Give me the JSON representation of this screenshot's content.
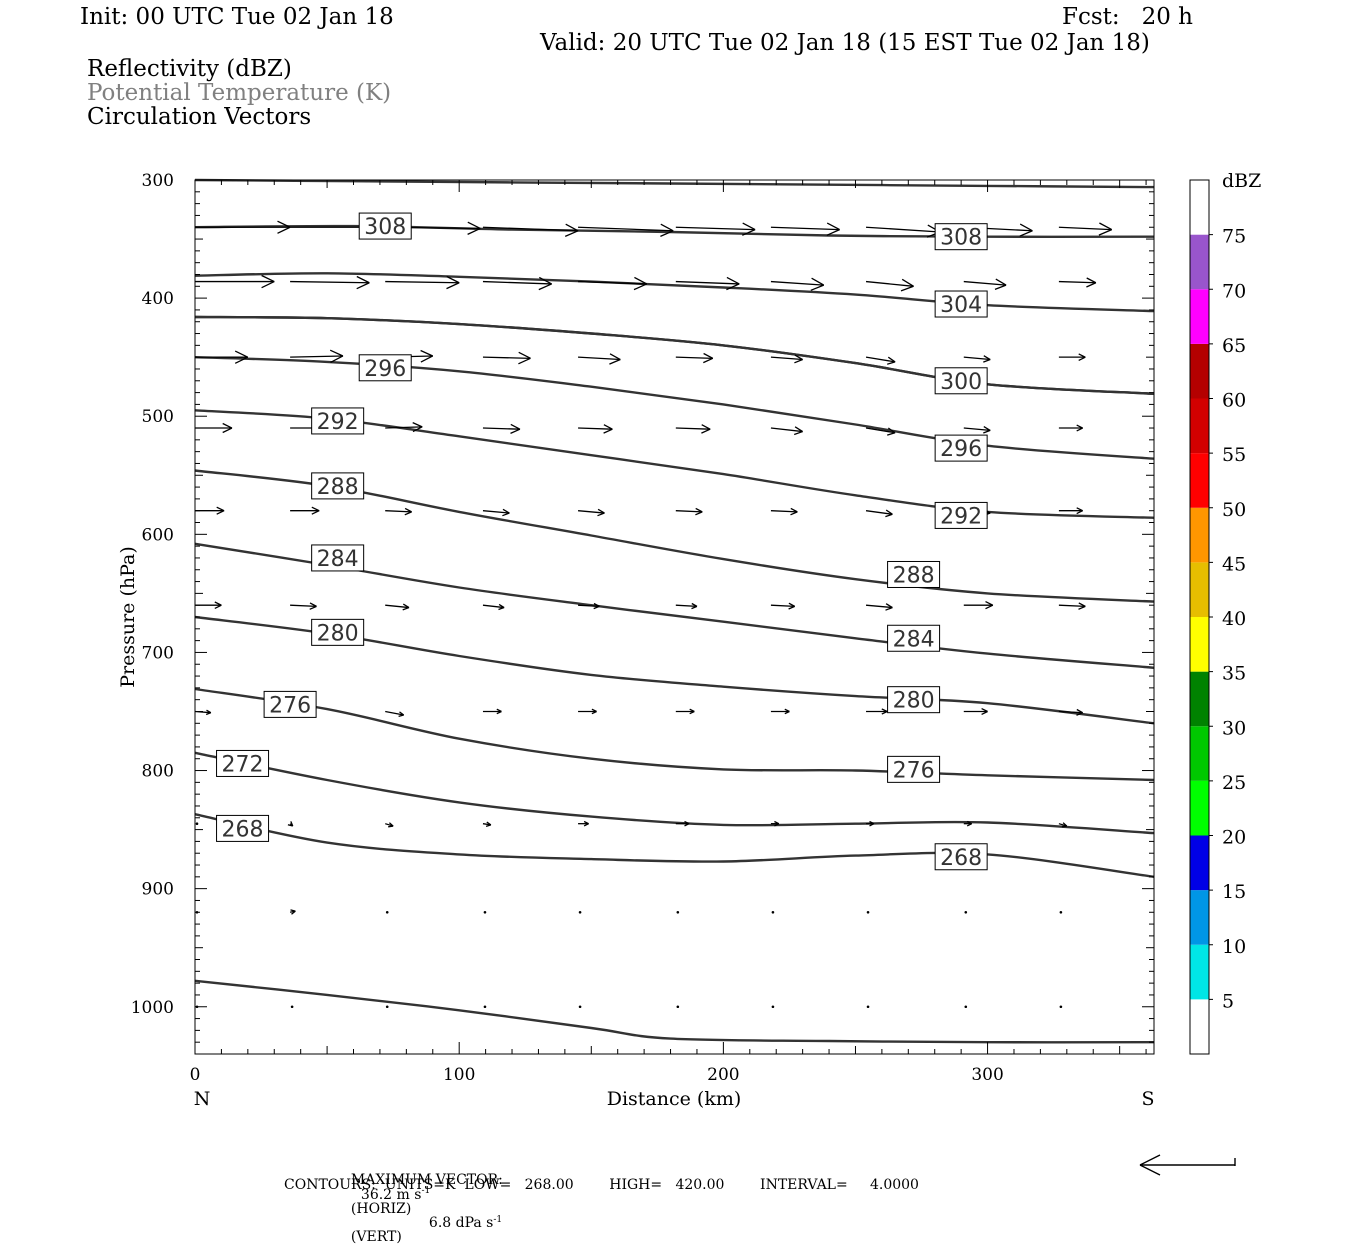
{
  "header": {
    "init": "Init: 00 UTC Tue 02 Jan 18",
    "fcst": "Fcst:   20 h",
    "valid": "Valid: 20 UTC Tue 02 Jan 18 (15 EST Tue 02 Jan 18)",
    "field1": "Reflectivity (dBZ)",
    "field2": "Potential Temperature (K)",
    "field3": "Circulation Vectors"
  },
  "footer": {
    "max_vector_label": "MAXIMUM VECTOR:",
    "max_vector_horiz": "36.2 m s",
    "horiz_exp": "-1",
    "horiz_tag": "(HORIZ)",
    "max_vector_vert": "6.8 dPa s",
    "vert_exp": "-1",
    "vert_tag": "(VERT)",
    "contours": "CONTOURS:  UNITS=K  LOW=   268.00        HIGH=   420.00        INTERVAL=     4.0000"
  },
  "colors": {
    "contour": "#333333",
    "frame": "#000000",
    "header_gray": "#808080"
  },
  "chart_data": {
    "type": "line",
    "xlabel": "Distance (km)",
    "ylabel": "Pressure (hPa)",
    "xlim": [
      0,
      363
    ],
    "ylim": [
      300,
      1040
    ],
    "y_inverted": true,
    "x_ticks": [
      0,
      100,
      200,
      300
    ],
    "y_ticks": [
      300,
      400,
      500,
      600,
      700,
      800,
      900,
      1000
    ],
    "x_end_labels": {
      "left": "N",
      "right": "S"
    },
    "contour_units": "K",
    "contours": [
      {
        "x": [
          0,
          60,
          120,
          180,
          240,
          300,
          363
        ],
        "p": [
          300,
          301,
          302,
          303,
          304,
          305,
          306
        ]
      },
      {
        "value": 308,
        "x": [
          0,
          60,
          120,
          180,
          240,
          300,
          363
        ],
        "p": [
          340,
          339,
          342,
          344,
          347,
          348,
          348
        ]
      },
      {
        "value": 304,
        "x": [
          0,
          50,
          100,
          150,
          200,
          250,
          300,
          363
        ],
        "p": [
          381,
          379,
          382,
          386,
          391,
          397,
          406,
          411
        ]
      },
      {
        "x": [
          0,
          50,
          100,
          150,
          200,
          250,
          300,
          363
        ],
        "p": [
          416,
          417,
          422,
          430,
          440,
          455,
          473,
          481
        ]
      },
      {
        "value": 300,
        "x": [
          0,
          50,
          100,
          150,
          200,
          250,
          300,
          363
        ],
        "p": [
          416,
          417,
          422,
          430,
          440,
          455,
          473,
          481
        ]
      },
      {
        "value": 296,
        "x": [
          0,
          50,
          100,
          150,
          200,
          250,
          300,
          363
        ],
        "p": [
          450,
          454,
          462,
          475,
          490,
          507,
          525,
          536
        ]
      },
      {
        "value": 292,
        "x": [
          0,
          50,
          100,
          150,
          200,
          250,
          300,
          363
        ],
        "p": [
          495,
          502,
          517,
          533,
          549,
          567,
          581,
          586
        ]
      },
      {
        "value": 288,
        "x": [
          0,
          50,
          100,
          150,
          200,
          250,
          300,
          363
        ],
        "p": [
          546,
          559,
          581,
          601,
          621,
          638,
          650,
          657
        ]
      },
      {
        "value": 284,
        "x": [
          0,
          50,
          100,
          150,
          200,
          250,
          300,
          363
        ],
        "p": [
          608,
          626,
          645,
          660,
          674,
          688,
          701,
          713
        ]
      },
      {
        "value": 280,
        "x": [
          0,
          50,
          100,
          150,
          200,
          250,
          300,
          363
        ],
        "p": [
          670,
          684,
          703,
          719,
          729,
          737,
          743,
          760
        ]
      },
      {
        "value": 276,
        "x": [
          0,
          50,
          100,
          150,
          200,
          250,
          300,
          363
        ],
        "p": [
          731,
          748,
          773,
          790,
          799,
          800,
          804,
          808
        ]
      },
      {
        "value": 272,
        "x": [
          0,
          50,
          100,
          150,
          200,
          250,
          300,
          363
        ],
        "p": [
          785,
          808,
          827,
          839,
          846,
          845,
          844,
          853
        ]
      },
      {
        "value": 268,
        "x": [
          0,
          50,
          100,
          150,
          200,
          250,
          300,
          363
        ],
        "p": [
          837,
          861,
          871,
          875,
          877,
          872,
          871,
          890
        ]
      },
      {
        "x": [
          0,
          50,
          100,
          150,
          180,
          240,
          300,
          363
        ],
        "p": [
          978,
          990,
          1003,
          1018,
          1027,
          1029,
          1030,
          1030
        ]
      }
    ],
    "contour_labels": [
      {
        "text": "308",
        "x": 72,
        "p": 339
      },
      {
        "text": "308",
        "x": 290,
        "p": 348
      },
      {
        "text": "304",
        "x": 290,
        "p": 405
      },
      {
        "text": "300",
        "x": 290,
        "p": 470
      },
      {
        "text": "296",
        "x": 72,
        "p": 459
      },
      {
        "text": "296",
        "x": 290,
        "p": 527
      },
      {
        "text": "292",
        "x": 54,
        "p": 504
      },
      {
        "text": "292",
        "x": 290,
        "p": 584
      },
      {
        "text": "288",
        "x": 54,
        "p": 559
      },
      {
        "text": "288",
        "x": 272,
        "p": 634
      },
      {
        "text": "284",
        "x": 54,
        "p": 620
      },
      {
        "text": "284",
        "x": 272,
        "p": 688
      },
      {
        "text": "280",
        "x": 54,
        "p": 683
      },
      {
        "text": "280",
        "x": 272,
        "p": 740
      },
      {
        "text": "276",
        "x": 36,
        "p": 744
      },
      {
        "text": "276",
        "x": 272,
        "p": 799
      },
      {
        "text": "272",
        "x": 18,
        "p": 794
      },
      {
        "text": "268",
        "x": 18,
        "p": 849
      },
      {
        "text": "268",
        "x": 290,
        "p": 873
      }
    ],
    "vector_columns_km": [
      0,
      36,
      72,
      109,
      145,
      182,
      218,
      254,
      291,
      327
    ],
    "vector_rows_hpa": [
      340,
      386,
      450,
      510,
      580,
      660,
      750,
      845,
      920,
      1000
    ],
    "vector_dx_km": [
      [
        36,
        36,
        36,
        36,
        36,
        30,
        26,
        28,
        26,
        20
      ],
      [
        30,
        30,
        28,
        26,
        26,
        24,
        20,
        18,
        16,
        14
      ],
      [
        20,
        20,
        18,
        18,
        16,
        14,
        12,
        11,
        10,
        10
      ],
      [
        14,
        14,
        14,
        14,
        13,
        13,
        12,
        11,
        10,
        9
      ],
      [
        11,
        11,
        10,
        10,
        10,
        10,
        10,
        10,
        10,
        9
      ],
      [
        10,
        10,
        9,
        8,
        8,
        8,
        9,
        10,
        11,
        10
      ],
      [
        6,
        7,
        7,
        7,
        7,
        7,
        7,
        8,
        9,
        9
      ],
      [
        1,
        1,
        3,
        3,
        4,
        5,
        3,
        3,
        3,
        3
      ],
      [
        0,
        2,
        1,
        1,
        0,
        1,
        1,
        0,
        1,
        1
      ],
      [
        0,
        1,
        1,
        1,
        1,
        1,
        1,
        1,
        1,
        1
      ]
    ],
    "vector_dp_hpa": [
      [
        0,
        0,
        1,
        3,
        3,
        2,
        2,
        4,
        3,
        2
      ],
      [
        0,
        1,
        1,
        2,
        2,
        2,
        3,
        4,
        3,
        1
      ],
      [
        0,
        -1,
        -1,
        1,
        2,
        1,
        2,
        4,
        2,
        0
      ],
      [
        0,
        0,
        -1,
        1,
        1,
        1,
        3,
        4,
        2,
        0
      ],
      [
        0,
        0,
        1,
        2,
        2,
        1,
        1,
        3,
        2,
        0
      ],
      [
        0,
        1,
        2,
        2,
        1,
        1,
        1,
        2,
        0,
        1
      ],
      [
        1,
        2,
        3,
        0,
        0,
        0,
        0,
        0,
        0,
        1
      ],
      [
        0,
        2,
        2,
        1,
        0,
        0,
        0,
        0,
        0,
        2
      ],
      [
        -1,
        -1,
        -1,
        -1,
        -1,
        0,
        1,
        0,
        1,
        1
      ],
      [
        0,
        0,
        0,
        1,
        1,
        0,
        0,
        0,
        0,
        0
      ]
    ],
    "colorbar": {
      "title": "dBZ",
      "tick_labels": [
        "5",
        "10",
        "15",
        "20",
        "25",
        "30",
        "35",
        "40",
        "45",
        "50",
        "55",
        "60",
        "65",
        "70",
        "75"
      ],
      "bins": [
        {
          "from": 0,
          "to": 5,
          "color": "#ffffff"
        },
        {
          "from": 5,
          "to": 10,
          "color": "#00e6e6"
        },
        {
          "from": 10,
          "to": 15,
          "color": "#0096e6"
        },
        {
          "from": 15,
          "to": 20,
          "color": "#0000e6"
        },
        {
          "from": 20,
          "to": 25,
          "color": "#00ff00"
        },
        {
          "from": 25,
          "to": 30,
          "color": "#00c800"
        },
        {
          "from": 30,
          "to": 35,
          "color": "#008200"
        },
        {
          "from": 35,
          "to": 40,
          "color": "#ffff00"
        },
        {
          "from": 40,
          "to": 45,
          "color": "#e6be00"
        },
        {
          "from": 45,
          "to": 50,
          "color": "#ff9600"
        },
        {
          "from": 50,
          "to": 55,
          "color": "#ff0000"
        },
        {
          "from": 55,
          "to": 60,
          "color": "#d20000"
        },
        {
          "from": 60,
          "to": 65,
          "color": "#b40000"
        },
        {
          "from": 65,
          "to": 70,
          "color": "#ff00ff"
        },
        {
          "from": 70,
          "to": 75,
          "color": "#9955cc"
        },
        {
          "from": 75,
          "to": 80,
          "color": "#ffffff"
        }
      ]
    }
  }
}
